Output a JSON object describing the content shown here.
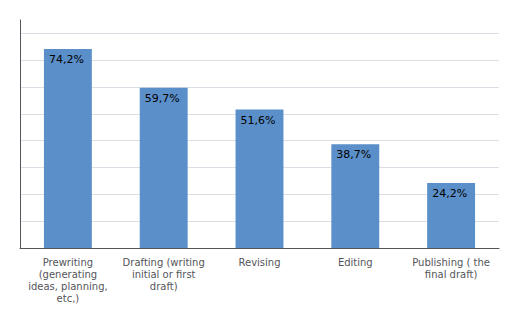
{
  "chart_data": {
    "type": "bar",
    "categories": [
      "Prewriting\n(generating\nideas, planning,\netc,)",
      "Drafting (writing\ninitial or first\ndraft)",
      "Revising",
      "Editing",
      "Publishing ( the\nfinal draft)"
    ],
    "values": [
      74.2,
      59.7,
      51.6,
      38.7,
      24.2
    ],
    "value_labels": [
      "74,2%",
      "59,7%",
      "51,6%",
      "38,7%",
      "24,2%"
    ],
    "color": "#5b8fc9",
    "ylim": [
      0,
      85
    ],
    "yticks": [
      0,
      10,
      20,
      30,
      40,
      50,
      60,
      70,
      80
    ],
    "grid": true,
    "data_labels": true,
    "tick_labels": "x"
  }
}
